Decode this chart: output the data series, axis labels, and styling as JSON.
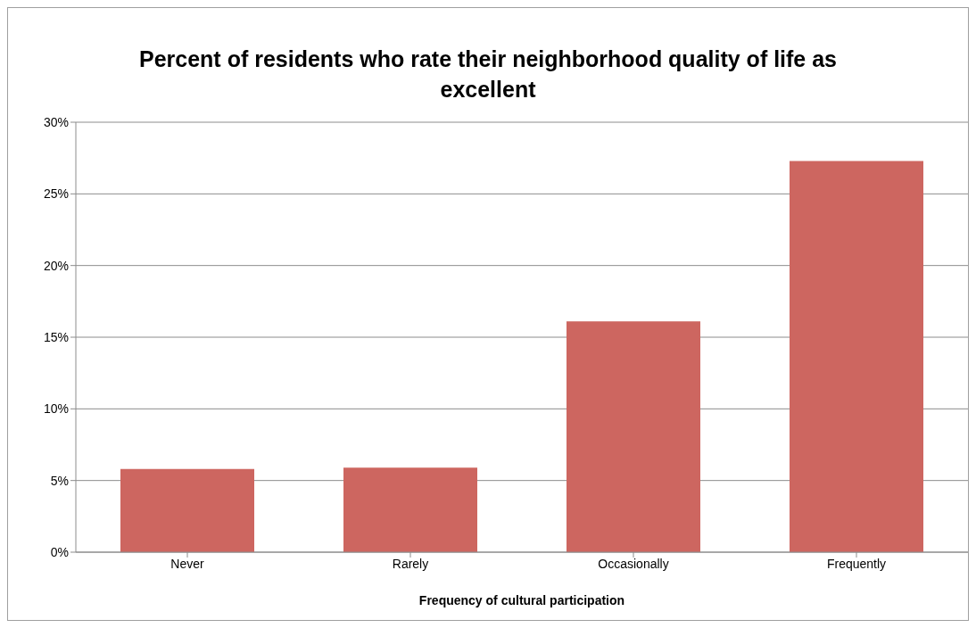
{
  "chart_data": {
    "type": "bar",
    "title": "Percent of residents who rate their neighborhood quality of life as excellent",
    "xlabel": "Frequency of cultural participation",
    "categories": [
      "Never",
      "Rarely",
      "Occasionally",
      "Frequently"
    ],
    "values": [
      5.8,
      5.9,
      16.1,
      27.3
    ],
    "color": "#cd6660",
    "ylim": [
      0,
      30
    ],
    "yticks": [
      {
        "value": 0,
        "label": "0%"
      },
      {
        "value": 5,
        "label": "5%"
      },
      {
        "value": 10,
        "label": "10%"
      },
      {
        "value": 15,
        "label": "15%"
      },
      {
        "value": 20,
        "label": "20%"
      },
      {
        "value": 25,
        "label": "25%"
      },
      {
        "value": 30,
        "label": "30%"
      }
    ],
    "grid": "y",
    "legend": false
  }
}
